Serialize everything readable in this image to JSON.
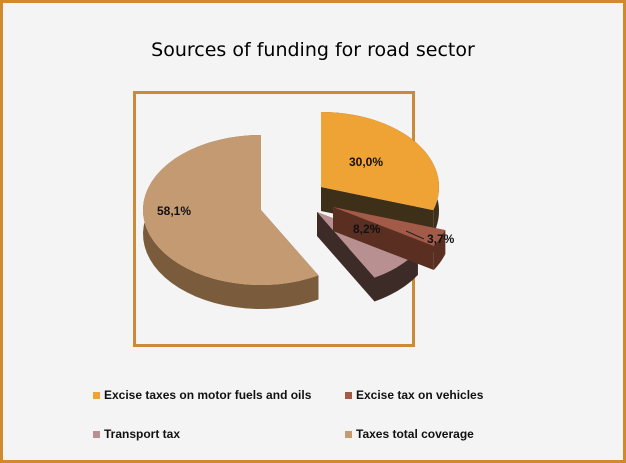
{
  "chart_data": {
    "type": "pie",
    "title": "Sources of funding for road sector",
    "slices": [
      {
        "name": "Excise taxes on motor fuels and oils",
        "value": 30.0,
        "label": "30,0%",
        "color": "#f0a335",
        "dark": "#3e2f19"
      },
      {
        "name": "Excise tax on vehicles",
        "value": 3.7,
        "label": "3,7%",
        "color": "#a15b48",
        "dark": "#5a2f22"
      },
      {
        "name": "Transport tax",
        "value": 8.2,
        "label": "8,2%",
        "color": "#b99092",
        "dark": "#3d2b28"
      },
      {
        "name": "Taxes total coverage",
        "value": 58.1,
        "label": "58,1%",
        "color": "#c49a73",
        "dark": "#7a5c3c"
      }
    ],
    "legend_placement": "bottom"
  }
}
